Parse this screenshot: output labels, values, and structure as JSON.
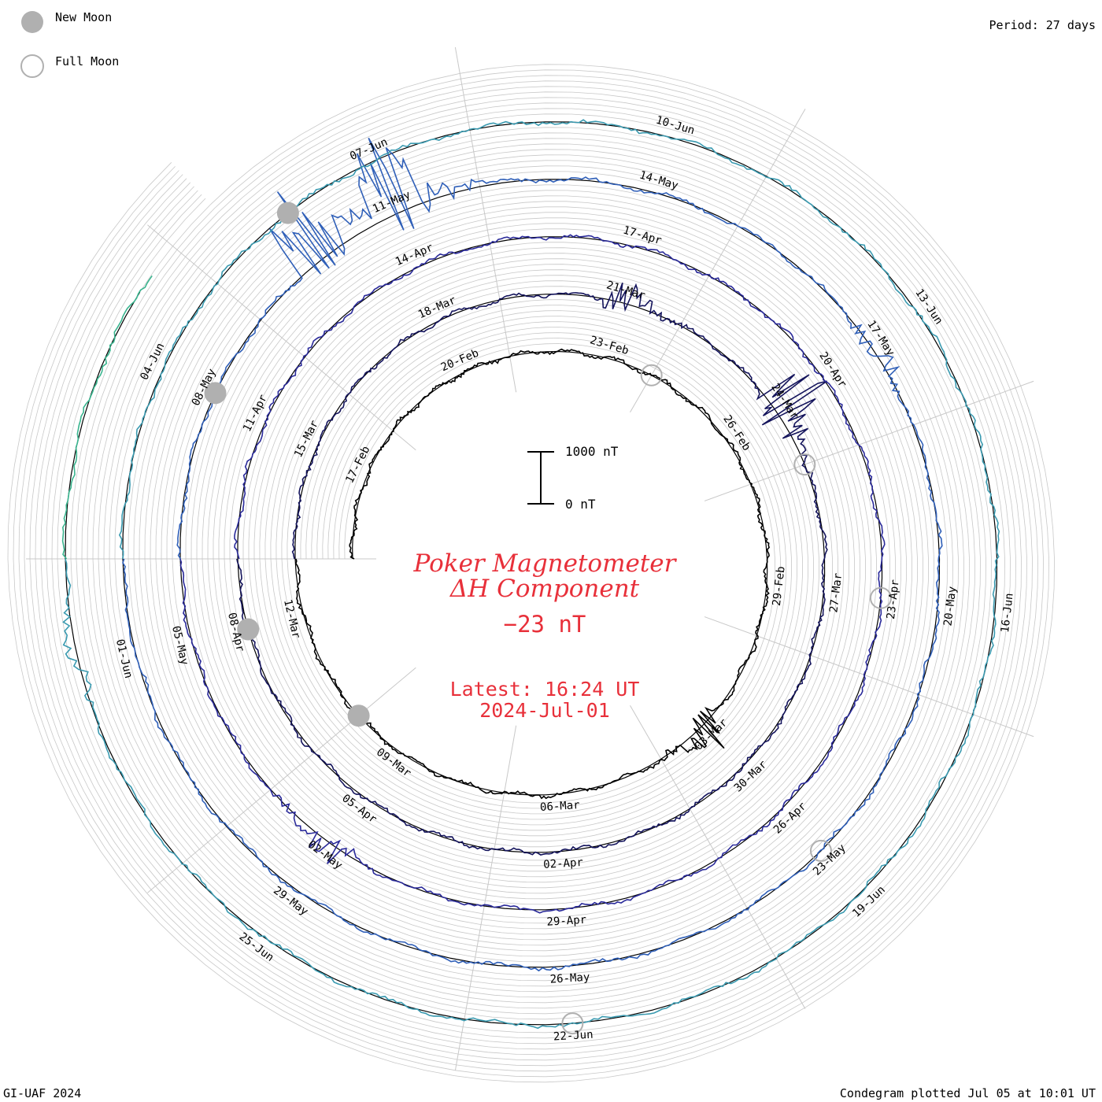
{
  "legend": {
    "new_moon": "New Moon",
    "full_moon": "Full Moon"
  },
  "period": "Period: 27 days",
  "credit": "GI-UAF 2024",
  "plotted": "Condegram plotted Jul 05 at 10:01 UT",
  "title_line1": "Poker Magnetometer",
  "title_line2": "ΔH Component",
  "current_value": "−23 nT",
  "latest_time": "Latest: 16:24 UT",
  "latest_date": "2024-Jul-01",
  "scale_top": "1000 nT",
  "scale_bottom": "0 nT",
  "colors": {
    "new_moon": "#b0b0b0",
    "full_moon": "#b0b0b0",
    "title": "#e8303a",
    "grid": "#c8c8c8",
    "baseline": "#000000"
  },
  "chart_data": {
    "type": "line",
    "subtype": "condegram spiral",
    "period_days": 27,
    "start_date": "2024-02-15",
    "end_date": "2024-07-01",
    "end_value_nT": -23,
    "scale_nT": [
      0,
      1000
    ],
    "series_colors": [
      "#000000",
      "#14145c",
      "#2a2a9a",
      "#2f5fb8",
      "#3a9ab0",
      "#3ab58f",
      "#6bbd3a",
      "#a8b830",
      "#c29a20",
      "#c46a18",
      "#c03a10"
    ],
    "date_labels": [
      "17-Feb",
      "20-Feb",
      "23-Feb",
      "26-Feb",
      "29-Feb",
      "03-Mar",
      "06-Mar",
      "09-Mar",
      "12-Mar",
      "15-Mar",
      "18-Mar",
      "21-Mar",
      "24-Mar",
      "27-Mar",
      "30-Mar",
      "02-Apr",
      "05-Apr",
      "08-Apr",
      "11-Apr",
      "14-Apr",
      "17-Apr",
      "20-Apr",
      "23-Apr",
      "26-Apr",
      "29-Apr",
      "02-May",
      "05-May",
      "08-May",
      "11-May",
      "14-May",
      "17-May",
      "20-May",
      "23-May",
      "26-May",
      "29-May",
      "01-Jun",
      "04-Jun",
      "07-Jun",
      "10-Jun",
      "13-Jun",
      "16-Jun",
      "19-Jun",
      "22-Jun",
      "25-Jun"
    ],
    "new_moon_dates": [
      "2024-03-10",
      "2024-04-08",
      "2024-05-08",
      "2024-06-06"
    ],
    "full_moon_dates": [
      "2024-02-24",
      "2024-03-25",
      "2024-04-23",
      "2024-05-23",
      "2024-06-22"
    ],
    "disturbances": [
      {
        "date": "2024-03-03",
        "peak_nT": 500
      },
      {
        "date": "2024-03-21",
        "peak_nT": 400
      },
      {
        "date": "2024-03-24",
        "peak_nT": 1000
      },
      {
        "date": "2024-05-02",
        "peak_nT": 400
      },
      {
        "date": "2024-05-10",
        "peak_nT": 1500
      },
      {
        "date": "2024-05-11",
        "peak_nT": 1300
      },
      {
        "date": "2024-05-17",
        "peak_nT": 300
      },
      {
        "date": "2024-06-28",
        "peak_nT": 250
      }
    ]
  }
}
